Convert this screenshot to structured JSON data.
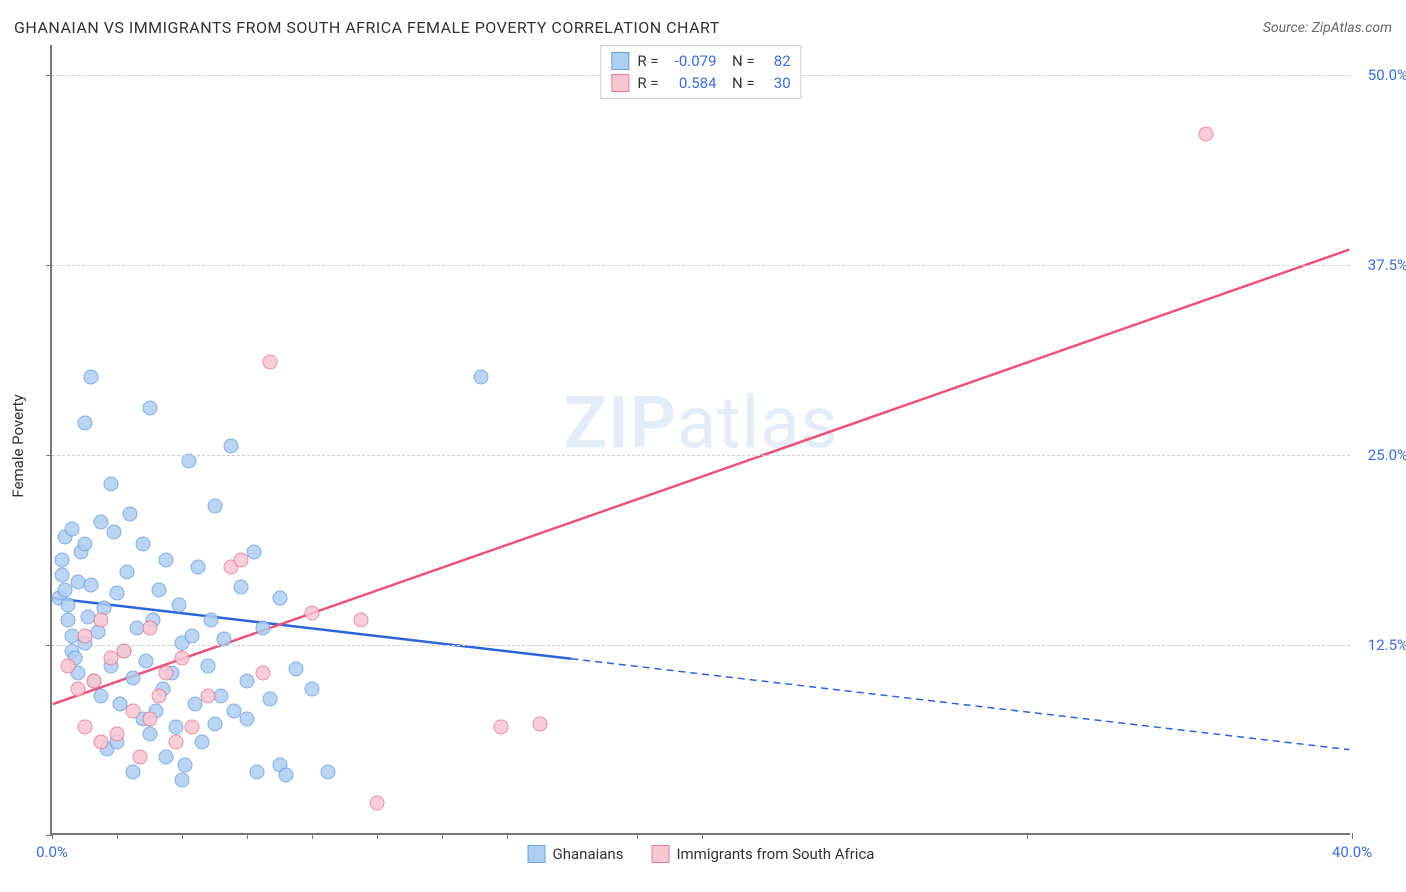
{
  "title": "GHANAIAN VS IMMIGRANTS FROM SOUTH AFRICA FEMALE POVERTY CORRELATION CHART",
  "source": "Source: ZipAtlas.com",
  "y_axis_label": "Female Poverty",
  "watermark_bold": "ZIP",
  "watermark_rest": "atlas",
  "chart": {
    "type": "scatter",
    "xlim": [
      0,
      40
    ],
    "ylim": [
      0,
      52
    ],
    "x_ticks_minor": [
      0,
      2,
      4,
      6,
      8,
      10,
      12,
      14,
      18,
      20,
      30,
      40
    ],
    "y_ticks_minor": [
      0,
      12.5,
      25,
      37.5,
      50
    ],
    "x_tick_labels": [
      {
        "pos": 0,
        "text": "0.0%"
      },
      {
        "pos": 40,
        "text": "40.0%"
      }
    ],
    "y_tick_labels": [
      {
        "pos": 12.5,
        "text": "12.5%"
      },
      {
        "pos": 25,
        "text": "25.0%"
      },
      {
        "pos": 37.5,
        "text": "37.5%"
      },
      {
        "pos": 50,
        "text": "50.0%"
      }
    ],
    "gridlines_y": [
      12.5,
      25,
      37.5,
      50
    ],
    "background_color": "#ffffff",
    "grid_color": "#d0d0d0",
    "axis_color": "#777777",
    "label_color": "#3a6fd8",
    "series": [
      {
        "name": "Ghanaians",
        "fill": "#aecdf0",
        "stroke": "#6fa2dd",
        "stroke_opacity": 0.9,
        "line_color": "#2b64d8",
        "R": "-0.079",
        "N": "82",
        "trend": {
          "x1": 0,
          "y1": 15.5,
          "x2": 40,
          "y2": 5.5,
          "solid_until_x": 16
        },
        "points": [
          [
            0.2,
            15.5
          ],
          [
            0.3,
            18.0
          ],
          [
            0.3,
            17.0
          ],
          [
            0.4,
            19.5
          ],
          [
            0.4,
            16.0
          ],
          [
            0.5,
            15.0
          ],
          [
            0.5,
            14.0
          ],
          [
            0.6,
            20.0
          ],
          [
            0.6,
            13.0
          ],
          [
            0.6,
            12.0
          ],
          [
            0.7,
            11.5
          ],
          [
            0.8,
            16.5
          ],
          [
            0.8,
            10.5
          ],
          [
            0.9,
            18.5
          ],
          [
            1.0,
            19.0
          ],
          [
            1.0,
            27.0
          ],
          [
            1.0,
            12.5
          ],
          [
            1.1,
            14.2
          ],
          [
            1.2,
            16.3
          ],
          [
            1.2,
            30.0
          ],
          [
            1.3,
            10.0
          ],
          [
            1.4,
            13.2
          ],
          [
            1.5,
            20.5
          ],
          [
            1.5,
            9.0
          ],
          [
            1.6,
            14.8
          ],
          [
            1.7,
            5.5
          ],
          [
            1.8,
            23.0
          ],
          [
            1.8,
            11.0
          ],
          [
            1.9,
            19.8
          ],
          [
            2.0,
            6.0
          ],
          [
            2.0,
            15.8
          ],
          [
            2.1,
            8.5
          ],
          [
            2.2,
            12.0
          ],
          [
            2.3,
            17.2
          ],
          [
            2.4,
            21.0
          ],
          [
            2.5,
            10.2
          ],
          [
            2.5,
            4.0
          ],
          [
            2.6,
            13.5
          ],
          [
            2.8,
            7.5
          ],
          [
            2.8,
            19.0
          ],
          [
            2.9,
            11.3
          ],
          [
            3.0,
            28.0
          ],
          [
            3.0,
            6.5
          ],
          [
            3.1,
            14.0
          ],
          [
            3.2,
            8.0
          ],
          [
            3.3,
            16.0
          ],
          [
            3.4,
            9.5
          ],
          [
            3.5,
            18.0
          ],
          [
            3.5,
            5.0
          ],
          [
            3.7,
            10.5
          ],
          [
            3.8,
            7.0
          ],
          [
            3.9,
            15.0
          ],
          [
            4.0,
            12.5
          ],
          [
            4.0,
            3.5
          ],
          [
            4.1,
            4.5
          ],
          [
            4.2,
            24.5
          ],
          [
            4.3,
            13.0
          ],
          [
            4.4,
            8.5
          ],
          [
            4.5,
            17.5
          ],
          [
            4.6,
            6.0
          ],
          [
            4.8,
            11.0
          ],
          [
            4.9,
            14.0
          ],
          [
            5.0,
            21.5
          ],
          [
            5.0,
            7.2
          ],
          [
            5.2,
            9.0
          ],
          [
            5.3,
            12.8
          ],
          [
            5.5,
            25.5
          ],
          [
            5.6,
            8.0
          ],
          [
            5.8,
            16.2
          ],
          [
            6.0,
            10.0
          ],
          [
            6.0,
            7.5
          ],
          [
            6.2,
            18.5
          ],
          [
            6.3,
            4.0
          ],
          [
            6.5,
            13.5
          ],
          [
            6.7,
            8.8
          ],
          [
            7.0,
            4.5
          ],
          [
            7.0,
            15.5
          ],
          [
            7.2,
            3.8
          ],
          [
            7.5,
            10.8
          ],
          [
            8.0,
            9.5
          ],
          [
            8.5,
            4.0
          ],
          [
            13.2,
            30.0
          ]
        ]
      },
      {
        "name": "Immigrants from South Africa",
        "fill": "#f6c6d1",
        "stroke": "#e77c9a",
        "stroke_opacity": 0.9,
        "line_color": "#e9537c",
        "R": "0.584",
        "N": "30",
        "trend": {
          "x1": 0,
          "y1": 8.5,
          "x2": 40,
          "y2": 38.5,
          "solid_until_x": 40
        },
        "points": [
          [
            0.5,
            11.0
          ],
          [
            0.8,
            9.5
          ],
          [
            1.0,
            13.0
          ],
          [
            1.0,
            7.0
          ],
          [
            1.3,
            10.0
          ],
          [
            1.5,
            14.0
          ],
          [
            1.5,
            6.0
          ],
          [
            1.8,
            11.5
          ],
          [
            2.0,
            6.5
          ],
          [
            2.2,
            12.0
          ],
          [
            2.5,
            8.0
          ],
          [
            2.7,
            5.0
          ],
          [
            3.0,
            7.5
          ],
          [
            3.0,
            13.5
          ],
          [
            3.3,
            9.0
          ],
          [
            3.5,
            10.5
          ],
          [
            3.8,
            6.0
          ],
          [
            4.0,
            11.5
          ],
          [
            4.3,
            7.0
          ],
          [
            4.8,
            9.0
          ],
          [
            5.5,
            17.5
          ],
          [
            5.8,
            18.0
          ],
          [
            6.5,
            10.5
          ],
          [
            6.7,
            31.0
          ],
          [
            8.0,
            14.5
          ],
          [
            9.5,
            14.0
          ],
          [
            10.0,
            2.0
          ],
          [
            13.8,
            7.0
          ],
          [
            15.0,
            7.2
          ],
          [
            35.5,
            46.0
          ]
        ]
      }
    ]
  },
  "bottom_legend": [
    {
      "label": "Ghanaians",
      "fill": "#aecdf0",
      "stroke": "#6fa2dd"
    },
    {
      "label": "Immigrants from South Africa",
      "fill": "#f6c6d1",
      "stroke": "#e77c9a"
    }
  ]
}
